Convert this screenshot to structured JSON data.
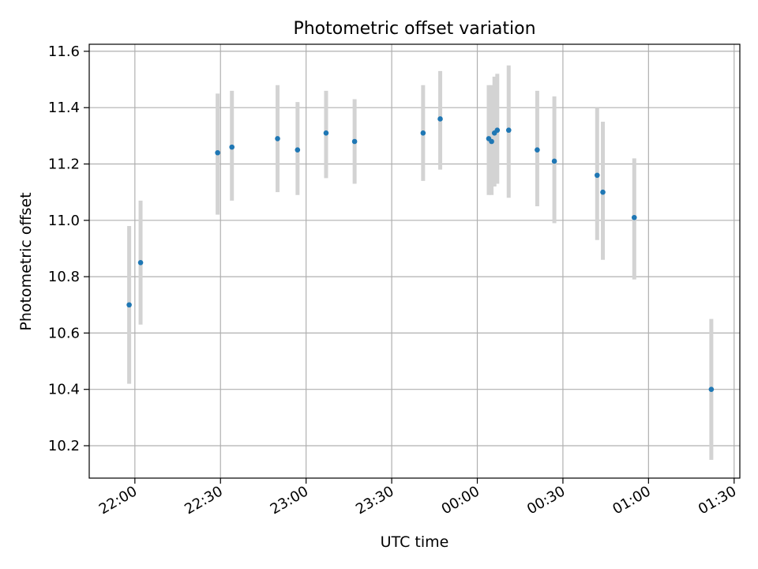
{
  "chart_data": {
    "type": "scatter",
    "title": "Photometric offset variation",
    "xlabel": "UTC time",
    "ylabel": "Photometric offset",
    "x_axis_kind": "time",
    "xlim": [
      "21:44",
      "01:32"
    ],
    "ylim": [
      10.085,
      11.625
    ],
    "grid": true,
    "x_ticks": [
      "22:00",
      "22:30",
      "23:00",
      "23:30",
      "00:00",
      "00:30",
      "01:00",
      "01:30"
    ],
    "y_ticks": [
      10.2,
      10.4,
      10.6,
      10.8,
      11.0,
      11.2,
      11.4,
      11.6
    ],
    "series": [
      {
        "marker_color": "#1f77b4",
        "errorbar_color": "#d3d3d3",
        "points": [
          {
            "x": "21:58",
            "y": 10.7,
            "ylo": 10.42,
            "yhi": 10.98
          },
          {
            "x": "22:02",
            "y": 10.85,
            "ylo": 10.63,
            "yhi": 11.07
          },
          {
            "x": "22:29",
            "y": 11.24,
            "ylo": 11.02,
            "yhi": 11.45
          },
          {
            "x": "22:34",
            "y": 11.26,
            "ylo": 11.07,
            "yhi": 11.46
          },
          {
            "x": "22:50",
            "y": 11.29,
            "ylo": 11.1,
            "yhi": 11.48
          },
          {
            "x": "22:57",
            "y": 11.25,
            "ylo": 11.09,
            "yhi": 11.42
          },
          {
            "x": "23:07",
            "y": 11.31,
            "ylo": 11.15,
            "yhi": 11.46
          },
          {
            "x": "23:17",
            "y": 11.28,
            "ylo": 11.13,
            "yhi": 11.43
          },
          {
            "x": "23:41",
            "y": 11.31,
            "ylo": 11.14,
            "yhi": 11.48
          },
          {
            "x": "23:47",
            "y": 11.36,
            "ylo": 11.18,
            "yhi": 11.53
          },
          {
            "x": "00:04",
            "y": 11.29,
            "ylo": 11.09,
            "yhi": 11.48
          },
          {
            "x": "00:05",
            "y": 11.28,
            "ylo": 11.09,
            "yhi": 11.48
          },
          {
            "x": "00:06",
            "y": 11.31,
            "ylo": 11.12,
            "yhi": 11.51
          },
          {
            "x": "00:07",
            "y": 11.32,
            "ylo": 11.13,
            "yhi": 11.52
          },
          {
            "x": "00:11",
            "y": 11.32,
            "ylo": 11.08,
            "yhi": 11.55
          },
          {
            "x": "00:21",
            "y": 11.25,
            "ylo": 11.05,
            "yhi": 11.46
          },
          {
            "x": "00:27",
            "y": 11.21,
            "ylo": 10.99,
            "yhi": 11.44
          },
          {
            "x": "00:42",
            "y": 11.16,
            "ylo": 10.93,
            "yhi": 11.4
          },
          {
            "x": "00:44",
            "y": 11.1,
            "ylo": 10.86,
            "yhi": 11.35
          },
          {
            "x": "00:55",
            "y": 11.01,
            "ylo": 10.79,
            "yhi": 11.22
          },
          {
            "x": "01:22",
            "y": 10.4,
            "ylo": 10.15,
            "yhi": 10.65
          }
        ]
      }
    ]
  }
}
